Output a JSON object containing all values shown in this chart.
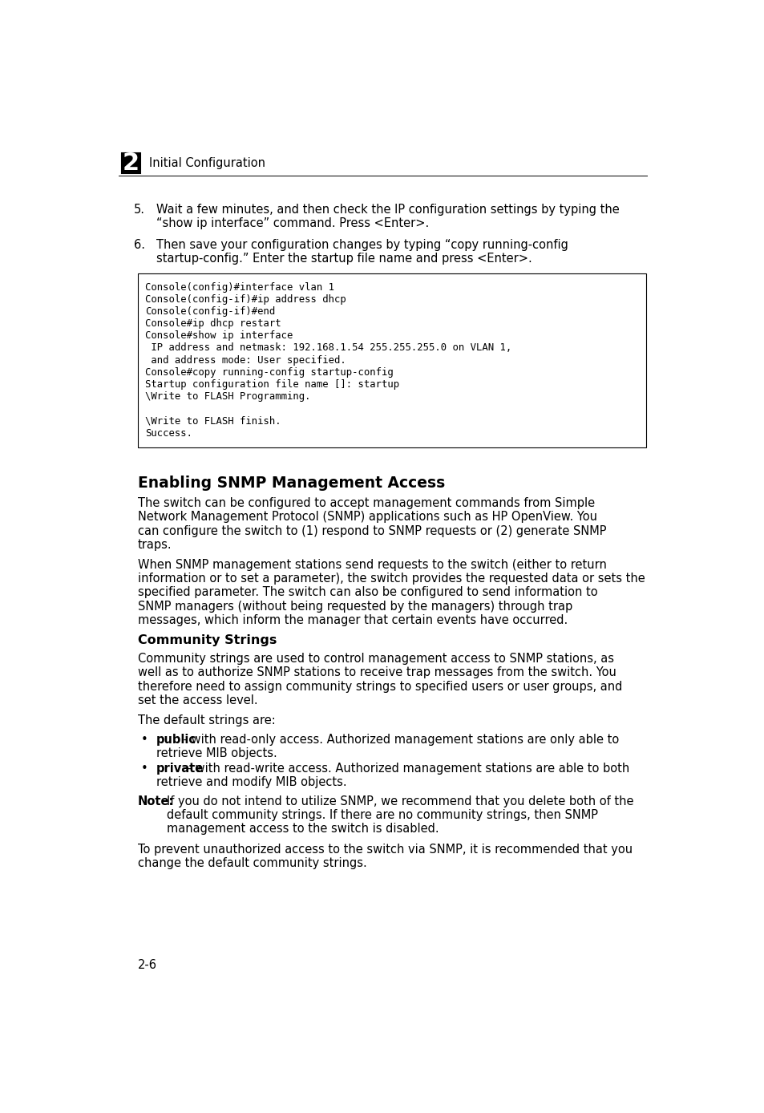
{
  "bg_color": "#ffffff",
  "page_width": 9.54,
  "page_height": 13.88,
  "header": {
    "chapter_num": "2",
    "chapter_title": "Initial Configuration"
  },
  "step5": {
    "num": "5.",
    "text_line1": "Wait a few minutes, and then check the IP configuration settings by typing the",
    "text_line2": "“show ip interface” command. Press <Enter>."
  },
  "step6": {
    "num": "6.",
    "text_line1": "Then save your configuration changes by typing “copy running-config",
    "text_line2": "startup-config.” Enter the startup file name and press <Enter>."
  },
  "code_block": [
    "Console(config)#interface vlan 1",
    "Console(config-if)#ip address dhcp",
    "Console(config-if)#end",
    "Console#ip dhcp restart",
    "Console#show ip interface",
    " IP address and netmask: 192.168.1.54 255.255.255.0 on VLAN 1,",
    " and address mode: User specified.",
    "Console#copy running-config startup-config",
    "Startup configuration file name []: startup",
    "\\Write to FLASH Programming.",
    "",
    "\\Write to FLASH finish.",
    "Success."
  ],
  "section_title": "Enabling SNMP Management Access",
  "para1_lines": [
    "The switch can be configured to accept management commands from Simple",
    "Network Management Protocol (SNMP) applications such as HP OpenView. You",
    "can configure the switch to (1) respond to SNMP requests or (2) generate SNMP",
    "traps."
  ],
  "para2_lines": [
    "When SNMP management stations send requests to the switch (either to return",
    "information or to set a parameter), the switch provides the requested data or sets the",
    "specified parameter. The switch can also be configured to send information to",
    "SNMP managers (without being requested by the managers) through trap",
    "messages, which inform the manager that certain events have occurred."
  ],
  "subsection_title": "Community Strings",
  "para3_lines": [
    "Community strings are used to control management access to SNMP stations, as",
    "well as to authorize SNMP stations to receive trap messages from the switch. You",
    "therefore need to assign community strings to specified users or user groups, and",
    "set the access level."
  ],
  "default_strings_intro": "The default strings are:",
  "bullet1_bold": "public",
  "bullet1_rest": " - with read-only access. Authorized management stations are only able to",
  "bullet1_line2": "retrieve MIB objects.",
  "bullet2_bold": "private",
  "bullet2_rest": " - with read-write access. Authorized management stations are able to both",
  "bullet2_line2": "retrieve and modify MIB objects.",
  "note_label": "Note:",
  "note_line1": "If you do not intend to utilize SNMP, we recommend that you delete both of the",
  "note_line2": "default community strings. If there are no community strings, then SNMP",
  "note_line3": "management access to the switch is disabled.",
  "final_para_lines": [
    "To prevent unauthorized access to the switch via SNMP, it is recommended that you",
    "change the default community strings."
  ],
  "page_num": "2-6",
  "fs_body": 10.5,
  "fs_code": 8.8,
  "fs_section": 13.5,
  "fs_subsection": 11.5,
  "fs_header_title": 10.5,
  "fs_header_num": 22,
  "lh_body": 0.222,
  "lh_code": 0.197
}
